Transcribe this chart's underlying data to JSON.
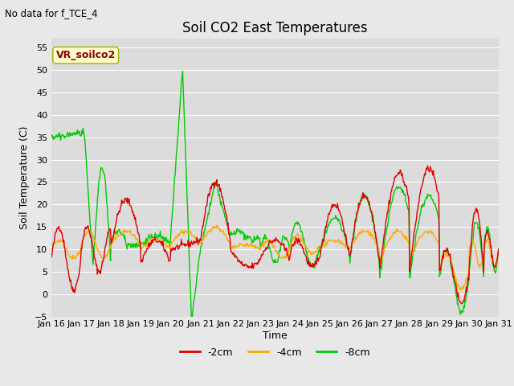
{
  "title": "Soil CO2 East Temperatures",
  "no_data_text": "No data for f_TCE_4",
  "ylabel": "Soil Temperature (C)",
  "xlabel": "Time",
  "ylim": [
    -5,
    57
  ],
  "yticks": [
    -5,
    0,
    5,
    10,
    15,
    20,
    25,
    30,
    35,
    40,
    45,
    50,
    55
  ],
  "xtick_labels": [
    "Jan 16",
    "Jan 17",
    "Jan 18",
    "Jan 19",
    "Jan 20",
    "Jan 21",
    "Jan 22",
    "Jan 23",
    "Jan 24",
    "Jan 25",
    "Jan 26",
    "Jan 27",
    "Jan 28",
    "Jan 29",
    "Jan 30",
    "Jan 31"
  ],
  "legend_label": "VR_soilco2",
  "line_colors": {
    "m2cm": "#dd0000",
    "m4cm": "#ffaa00",
    "m8cm": "#00cc00"
  },
  "line_labels": [
    "-2cm",
    "-4cm",
    "-8cm"
  ],
  "bg_color": "#e8e8e8",
  "plot_bg_color": "#dcdcdc",
  "line_width": 1.0,
  "num_days": 15,
  "num_points_per_day": 48
}
